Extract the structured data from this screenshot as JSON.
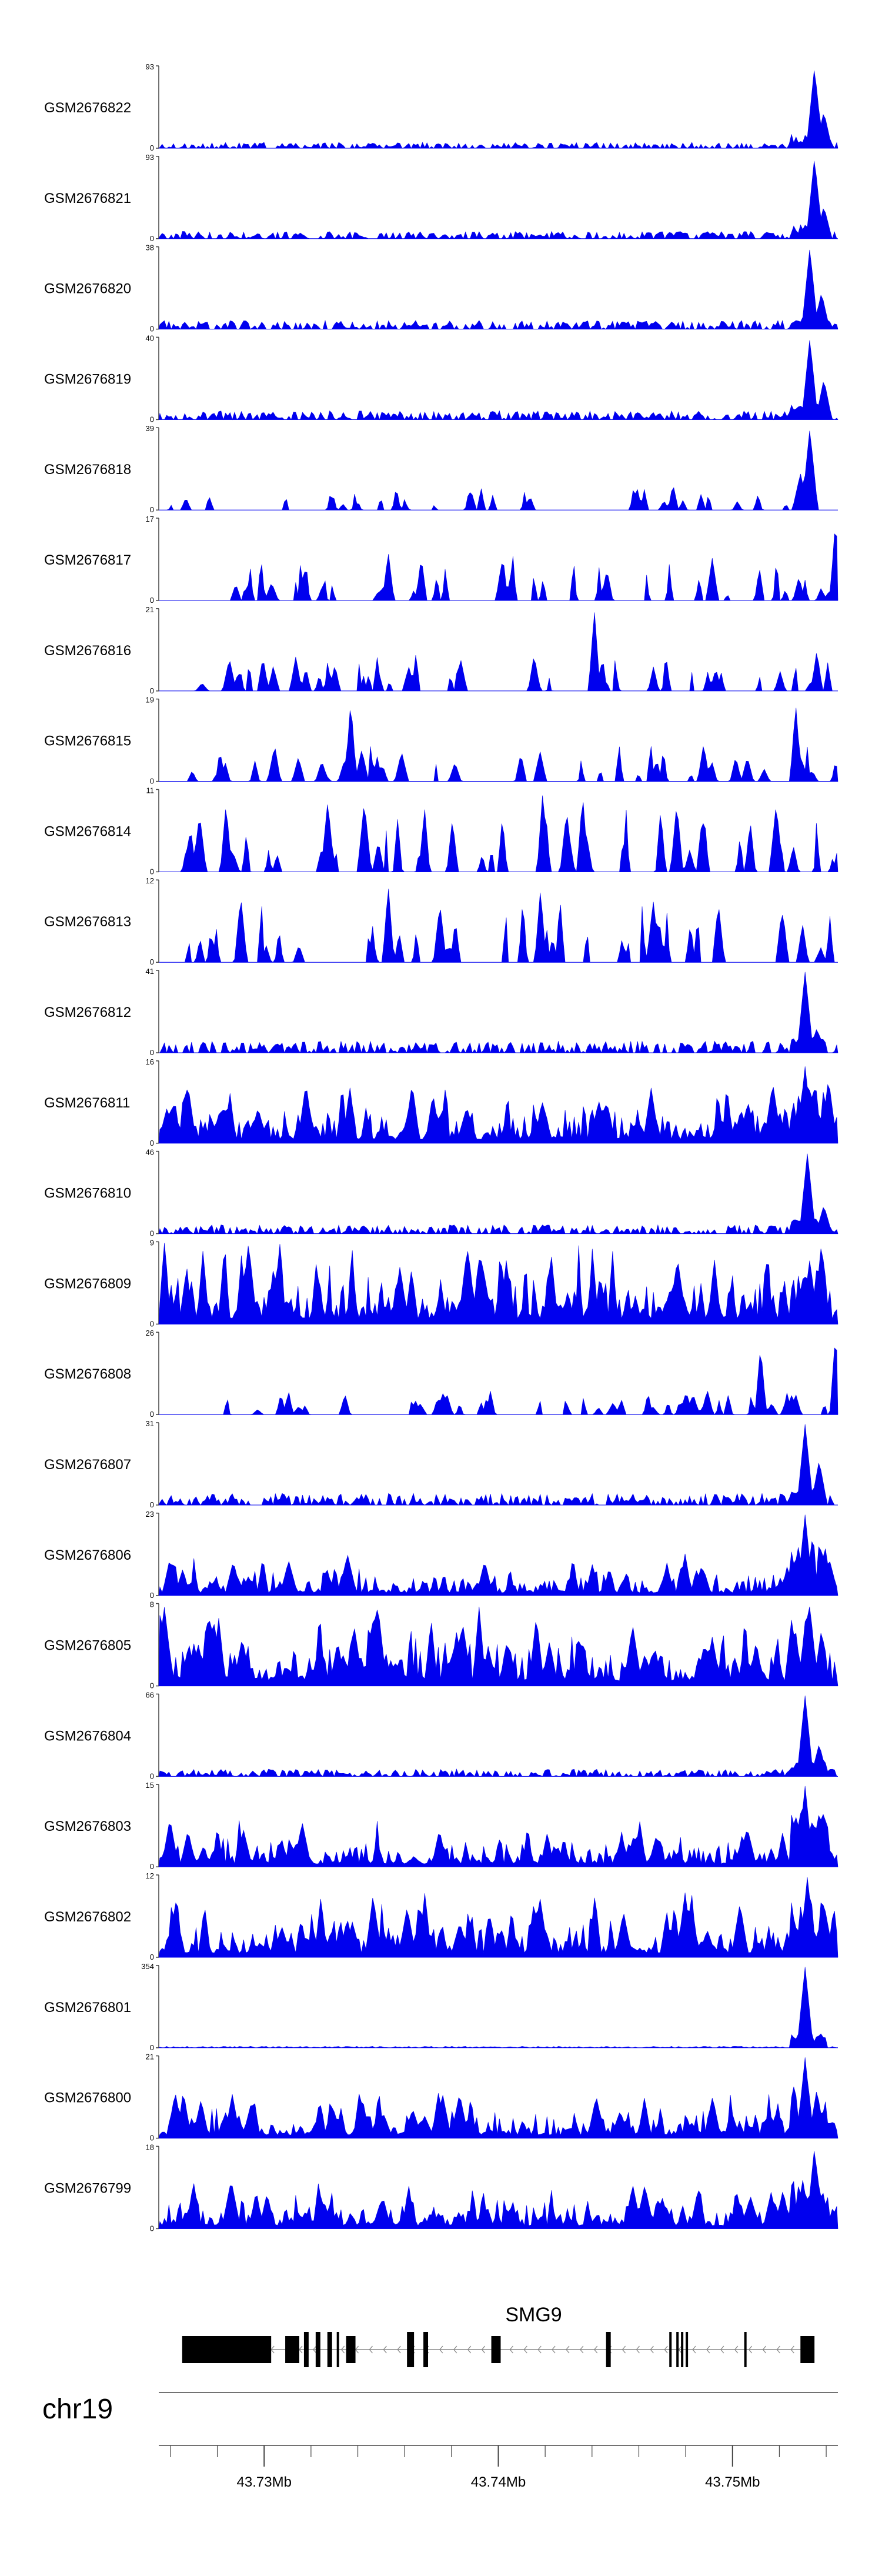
{
  "colors": {
    "signal": "#0000ee",
    "axis": "#444444",
    "gene": "#000000",
    "intron": "#888888"
  },
  "chart_data": {
    "type": "area",
    "title": "",
    "chromosome": "chr19",
    "xlim": [
      43.7255,
      43.7545
    ],
    "x_unit": "Mb",
    "x_ticks": [
      {
        "value": 43.73,
        "label": "43.73Mb"
      },
      {
        "value": 43.74,
        "label": "43.74Mb"
      },
      {
        "value": 43.75,
        "label": "43.75Mb"
      }
    ],
    "minor_tick_step": 0.002,
    "peak_region": [
      43.7525,
      43.754
    ],
    "tracks": [
      {
        "name": "GSM2676822",
        "ymax": 93,
        "ymin": 0,
        "style": "peak",
        "baseline": 0.04,
        "seed": 22,
        "peaks": [
          [
            43.7535,
            1.0
          ],
          [
            43.7539,
            0.45
          ]
        ]
      },
      {
        "name": "GSM2676821",
        "ymax": 93,
        "ymin": 0,
        "style": "peak",
        "baseline": 0.05,
        "seed": 21,
        "peaks": [
          [
            43.7535,
            1.0
          ],
          [
            43.7539,
            0.4
          ]
        ]
      },
      {
        "name": "GSM2676820",
        "ymax": 38,
        "ymin": 0,
        "style": "peak",
        "baseline": 0.06,
        "seed": 20,
        "peaks": [
          [
            43.7533,
            1.0
          ],
          [
            43.7538,
            0.45
          ]
        ]
      },
      {
        "name": "GSM2676819",
        "ymax": 40,
        "ymin": 0,
        "style": "peak",
        "baseline": 0.06,
        "seed": 19,
        "peaks": [
          [
            43.7533,
            1.0
          ],
          [
            43.7539,
            0.5
          ]
        ]
      },
      {
        "name": "GSM2676818",
        "ymax": 39,
        "ymin": 0,
        "style": "sparse",
        "baseline": 0.2,
        "seed": 18,
        "peaks": [
          [
            43.7533,
            1.0
          ],
          [
            43.7529,
            0.45
          ]
        ]
      },
      {
        "name": "GSM2676817",
        "ymax": 17,
        "ymin": 0,
        "style": "spiky",
        "baseline": 0.35,
        "seed": 17,
        "peaks": [
          [
            43.7544,
            1.0
          ],
          [
            43.7353,
            0.6
          ]
        ]
      },
      {
        "name": "GSM2676816",
        "ymax": 21,
        "ymin": 0,
        "style": "spiky",
        "baseline": 0.3,
        "seed": 16,
        "peaks": [
          [
            43.7441,
            1.0
          ],
          [
            43.7536,
            0.5
          ]
        ]
      },
      {
        "name": "GSM2676815",
        "ymax": 19,
        "ymin": 0,
        "style": "spiky",
        "baseline": 0.3,
        "seed": 15,
        "peaks": [
          [
            43.7337,
            1.0
          ],
          [
            43.7527,
            0.95
          ]
        ]
      },
      {
        "name": "GSM2676814",
        "ymax": 11,
        "ymin": 0,
        "style": "spiky",
        "baseline": 0.55,
        "seed": 14,
        "peaks": [
          [
            43.7419,
            1.0
          ],
          [
            43.7436,
            0.95
          ]
        ]
      },
      {
        "name": "GSM2676813",
        "ymax": 12,
        "ymin": 0,
        "style": "spiky",
        "baseline": 0.55,
        "seed": 13,
        "peaks": [
          [
            43.7353,
            0.95
          ],
          [
            43.7418,
            0.9
          ]
        ]
      },
      {
        "name": "GSM2676812",
        "ymax": 41,
        "ymin": 0,
        "style": "peak",
        "baseline": 0.08,
        "seed": 12,
        "peaks": [
          [
            43.7531,
            1.0
          ],
          [
            43.7536,
            0.3
          ]
        ]
      },
      {
        "name": "GSM2676811",
        "ymax": 16,
        "ymin": 0,
        "style": "dense",
        "baseline": 0.32,
        "seed": 11,
        "peaks": [
          [
            43.7531,
            0.95
          ],
          [
            43.7541,
            0.8
          ]
        ]
      },
      {
        "name": "GSM2676810",
        "ymax": 46,
        "ymin": 0,
        "style": "peak",
        "baseline": 0.06,
        "seed": 10,
        "peaks": [
          [
            43.7532,
            1.0
          ],
          [
            43.7539,
            0.35
          ]
        ]
      },
      {
        "name": "GSM2676809",
        "ymax": 9,
        "ymin": 0,
        "style": "dense",
        "baseline": 0.45,
        "seed": 9,
        "peaks": [
          [
            43.7538,
            1.0
          ],
          [
            43.7533,
            0.8
          ]
        ]
      },
      {
        "name": "GSM2676808",
        "ymax": 26,
        "ymin": 0,
        "style": "spiky",
        "baseline": 0.2,
        "seed": 8,
        "peaks": [
          [
            43.7544,
            1.0
          ],
          [
            43.7512,
            0.85
          ]
        ]
      },
      {
        "name": "GSM2676807",
        "ymax": 31,
        "ymin": 0,
        "style": "peak",
        "baseline": 0.08,
        "seed": 7,
        "peaks": [
          [
            43.7531,
            1.0
          ],
          [
            43.7537,
            0.55
          ]
        ]
      },
      {
        "name": "GSM2676806",
        "ymax": 23,
        "ymin": 0,
        "style": "dense",
        "baseline": 0.22,
        "seed": 6,
        "peaks": [
          [
            43.7531,
            1.0
          ],
          [
            43.7538,
            0.6
          ]
        ]
      },
      {
        "name": "GSM2676805",
        "ymax": 8,
        "ymin": 0,
        "style": "dense",
        "baseline": 0.42,
        "seed": 5,
        "peaks": [
          [
            43.7533,
            1.0
          ],
          [
            43.7538,
            0.7
          ]
        ]
      },
      {
        "name": "GSM2676804",
        "ymax": 66,
        "ymin": 0,
        "style": "peak",
        "baseline": 0.05,
        "seed": 4,
        "peaks": [
          [
            43.7531,
            1.0
          ],
          [
            43.7537,
            0.4
          ]
        ]
      },
      {
        "name": "GSM2676803",
        "ymax": 15,
        "ymin": 0,
        "style": "dense",
        "baseline": 0.25,
        "seed": 3,
        "peaks": [
          [
            43.7531,
            1.0
          ],
          [
            43.7538,
            0.55
          ]
        ]
      },
      {
        "name": "GSM2676802",
        "ymax": 12,
        "ymin": 0,
        "style": "dense",
        "baseline": 0.35,
        "seed": 2,
        "peaks": [
          [
            43.7532,
            1.0
          ],
          [
            43.7539,
            0.7
          ]
        ]
      },
      {
        "name": "GSM2676801",
        "ymax": 354,
        "ymin": 0,
        "style": "peak",
        "baseline": 0.01,
        "seed": 1,
        "peaks": [
          [
            43.7531,
            1.0
          ]
        ]
      },
      {
        "name": "GSM2676800",
        "ymax": 21,
        "ymin": 0,
        "style": "dense",
        "baseline": 0.25,
        "seed": 100,
        "peaks": [
          [
            43.7531,
            1.0
          ],
          [
            43.7536,
            0.6
          ]
        ]
      },
      {
        "name": "GSM2676799",
        "ymax": 18,
        "ymin": 0,
        "style": "dense",
        "baseline": 0.25,
        "seed": 99,
        "peaks": [
          [
            43.7535,
            1.0
          ],
          [
            43.753,
            0.6
          ]
        ]
      }
    ],
    "gene": {
      "name": "SMG9",
      "strand": "-",
      "start": 43.7265,
      "end": 43.7535,
      "exons": [
        [
          43.7265,
          43.7303
        ],
        [
          43.7309,
          43.7315
        ],
        [
          43.7317,
          43.7319
        ],
        [
          43.7322,
          43.7324
        ],
        [
          43.7327,
          43.7329
        ],
        [
          43.7331,
          43.7332
        ],
        [
          43.7335,
          43.7339
        ],
        [
          43.7361,
          43.7364
        ],
        [
          43.7368,
          43.737
        ],
        [
          43.7397,
          43.7401
        ],
        [
          43.7446,
          43.7448
        ],
        [
          43.7473,
          43.7474
        ],
        [
          43.7476,
          43.7477
        ],
        [
          43.7478,
          43.7479
        ],
        [
          43.748,
          43.7481
        ],
        [
          43.7505,
          43.7506
        ],
        [
          43.7529,
          43.7535
        ]
      ]
    }
  }
}
